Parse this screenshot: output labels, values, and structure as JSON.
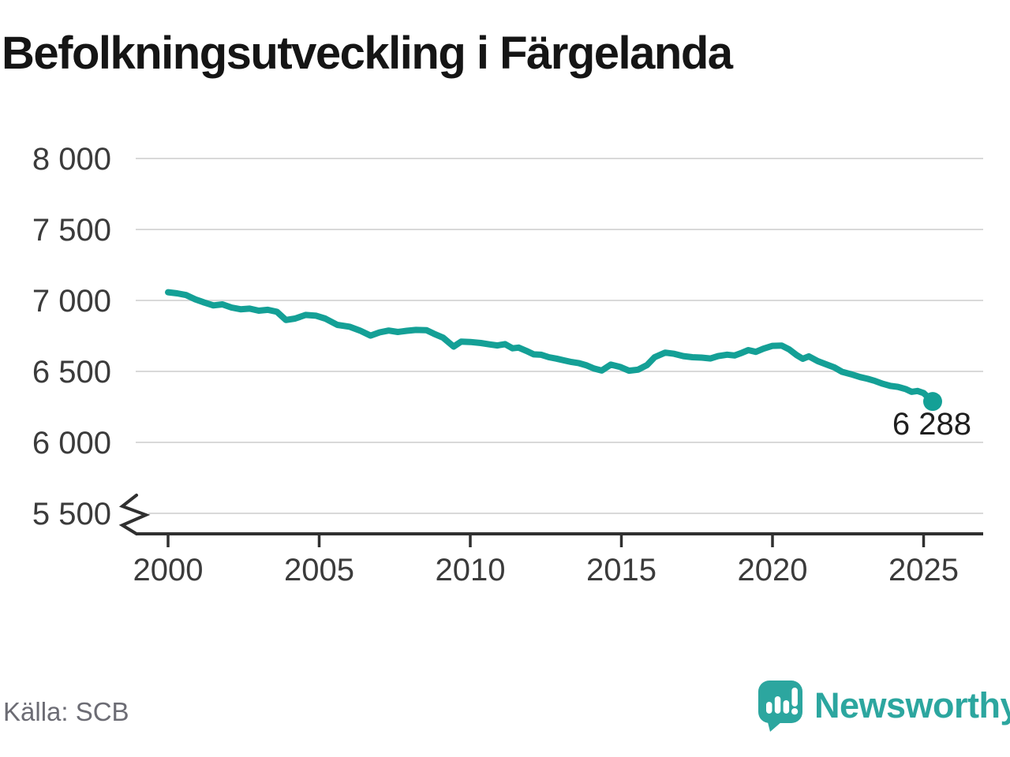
{
  "header": {
    "title": "Befolkningsutveckling i Färgelanda"
  },
  "footer": {
    "source": "Källa: SCB",
    "brand": "Newsworthy"
  },
  "colors": {
    "line": "#14a096",
    "logo_teal": "#2ca69f",
    "grid": "#d9d9d9",
    "axis": "#303030",
    "tick_label": "#3b3b3b",
    "end_label": "#1f1f1f",
    "title": "#151515",
    "source": "#6c6c74"
  },
  "chart_data": {
    "type": "line",
    "title": "Befolkningsutveckling i Färgelanda",
    "xlabel": "",
    "ylabel": "",
    "source": "Källa: SCB",
    "grid": "horizontal",
    "legend": "none",
    "y_axis_break": true,
    "ylim": [
      5500,
      8000
    ],
    "xlim": [
      1999,
      2027
    ],
    "y_ticks": {
      "values": [
        8000,
        7500,
        7000,
        6500,
        6000,
        5500
      ],
      "labels": [
        "8 000",
        "7 500",
        "7 000",
        "6 500",
        "6 000",
        "5 500"
      ]
    },
    "x_ticks": {
      "values": [
        2000,
        2005,
        2010,
        2015,
        2020,
        2025
      ],
      "labels": [
        "2000",
        "2005",
        "2010",
        "2015",
        "2020",
        "2025"
      ]
    },
    "last_point_label": "6 288",
    "last_value": 6288,
    "series": [
      {
        "points": [
          [
            2000.0,
            7058
          ],
          [
            2000.3,
            7050
          ],
          [
            2000.6,
            7038
          ],
          [
            2000.9,
            7008
          ],
          [
            2001.2,
            6985
          ],
          [
            2001.5,
            6965
          ],
          [
            2001.8,
            6972
          ],
          [
            2002.1,
            6950
          ],
          [
            2002.4,
            6938
          ],
          [
            2002.7,
            6942
          ],
          [
            2003.0,
            6928
          ],
          [
            2003.3,
            6934
          ],
          [
            2003.6,
            6920
          ],
          [
            2003.9,
            6862
          ],
          [
            2004.2,
            6872
          ],
          [
            2004.55,
            6898
          ],
          [
            2004.9,
            6892
          ],
          [
            2005.2,
            6872
          ],
          [
            2005.6,
            6828
          ],
          [
            2006.0,
            6815
          ],
          [
            2006.35,
            6788
          ],
          [
            2006.7,
            6752
          ],
          [
            2007.0,
            6775
          ],
          [
            2007.3,
            6788
          ],
          [
            2007.6,
            6778
          ],
          [
            2007.9,
            6786
          ],
          [
            2008.2,
            6792
          ],
          [
            2008.55,
            6790
          ],
          [
            2008.8,
            6765
          ],
          [
            2009.1,
            6738
          ],
          [
            2009.45,
            6675
          ],
          [
            2009.7,
            6710
          ],
          [
            2010.0,
            6707
          ],
          [
            2010.35,
            6700
          ],
          [
            2010.65,
            6690
          ],
          [
            2010.9,
            6683
          ],
          [
            2011.15,
            6692
          ],
          [
            2011.4,
            6663
          ],
          [
            2011.6,
            6668
          ],
          [
            2011.85,
            6645
          ],
          [
            2012.1,
            6620
          ],
          [
            2012.35,
            6617
          ],
          [
            2012.6,
            6600
          ],
          [
            2012.85,
            6590
          ],
          [
            2013.1,
            6578
          ],
          [
            2013.35,
            6566
          ],
          [
            2013.6,
            6558
          ],
          [
            2013.85,
            6542
          ],
          [
            2014.1,
            6520
          ],
          [
            2014.35,
            6506
          ],
          [
            2014.65,
            6548
          ],
          [
            2014.95,
            6532
          ],
          [
            2015.25,
            6505
          ],
          [
            2015.55,
            6512
          ],
          [
            2015.85,
            6545
          ],
          [
            2016.1,
            6600
          ],
          [
            2016.45,
            6632
          ],
          [
            2016.75,
            6624
          ],
          [
            2017.05,
            6608
          ],
          [
            2017.35,
            6600
          ],
          [
            2017.65,
            6597
          ],
          [
            2017.95,
            6591
          ],
          [
            2018.2,
            6608
          ],
          [
            2018.5,
            6618
          ],
          [
            2018.75,
            6612
          ],
          [
            2019.0,
            6632
          ],
          [
            2019.2,
            6650
          ],
          [
            2019.45,
            6638
          ],
          [
            2019.7,
            6660
          ],
          [
            2020.0,
            6680
          ],
          [
            2020.3,
            6682
          ],
          [
            2020.55,
            6655
          ],
          [
            2020.8,
            6615
          ],
          [
            2021.0,
            6589
          ],
          [
            2021.2,
            6606
          ],
          [
            2021.5,
            6572
          ],
          [
            2021.8,
            6548
          ],
          [
            2022.05,
            6528
          ],
          [
            2022.3,
            6497
          ],
          [
            2022.6,
            6480
          ],
          [
            2022.9,
            6460
          ],
          [
            2023.15,
            6448
          ],
          [
            2023.4,
            6432
          ],
          [
            2023.65,
            6413
          ],
          [
            2023.9,
            6398
          ],
          [
            2024.15,
            6391
          ],
          [
            2024.4,
            6376
          ],
          [
            2024.6,
            6356
          ],
          [
            2024.8,
            6362
          ],
          [
            2025.0,
            6348
          ],
          [
            2025.3,
            6288
          ]
        ]
      }
    ]
  }
}
